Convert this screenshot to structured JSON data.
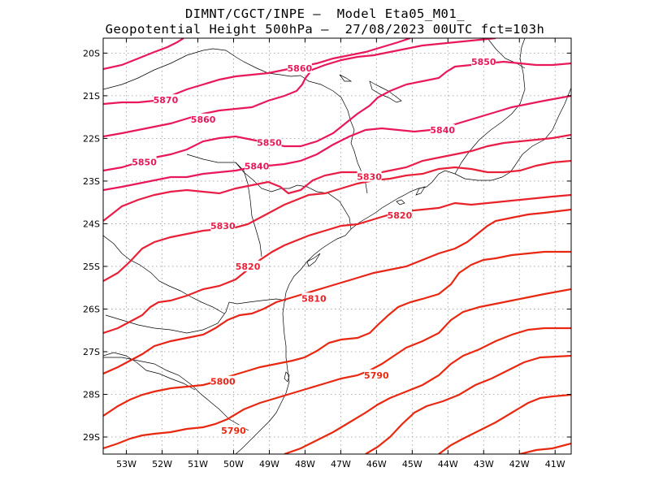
{
  "title": {
    "line1": "DIMNT/CGCT/INPE –  Model Eta05_M01_",
    "line2": "Geopotential Height 500hPa –  27/08/2023 00UTC fct=103h"
  },
  "axes": {
    "lat_labels": [
      "20S",
      "21S",
      "22S",
      "23S",
      "24S",
      "25S",
      "26S",
      "27S",
      "28S",
      "29S"
    ],
    "lat_values": [
      20,
      21,
      22,
      23,
      24,
      25,
      26,
      27,
      28,
      29
    ],
    "lon_labels": [
      "53W",
      "52W",
      "51W",
      "50W",
      "49W",
      "48W",
      "47W",
      "46W",
      "45W",
      "44W",
      "43W",
      "42W",
      "41W"
    ],
    "lon_values": [
      53,
      52,
      51,
      50,
      49,
      48,
      47,
      46,
      45,
      44,
      43,
      42,
      41
    ],
    "lat_range": [
      19.65,
      29.4
    ],
    "lon_range": [
      53.65,
      40.55
    ]
  },
  "contours": [
    {
      "value": 5870,
      "label": "5870",
      "color": "#e8185a"
    },
    {
      "value": 5860,
      "label": "5860",
      "color": "#e8185a"
    },
    {
      "value": 5850,
      "label": "5850",
      "color": "#e8185a"
    },
    {
      "value": 5840,
      "label": "5840",
      "color": "#e8185a"
    },
    {
      "value": 5830,
      "label": "5830",
      "color": "#e81d48"
    },
    {
      "value": 5820,
      "label": "5820",
      "color": "#e82038"
    },
    {
      "value": 5810,
      "label": "5810",
      "color": "#e82228"
    },
    {
      "value": 5800,
      "label": "5800",
      "color": "#e82418"
    },
    {
      "value": 5790,
      "label": "5790",
      "color": "#e82810"
    }
  ],
  "contour_labels": [
    {
      "text": "5860",
      "lon": 48.15,
      "lat": 20.35,
      "color": "#e8185a"
    },
    {
      "text": "5850",
      "lon": 43.0,
      "lat": 20.2,
      "color": "#e8185a"
    },
    {
      "text": "5870",
      "lon": 51.9,
      "lat": 21.1,
      "color": "#e8185a"
    },
    {
      "text": "5860",
      "lon": 50.85,
      "lat": 21.55,
      "color": "#e8185a"
    },
    {
      "text": "5850",
      "lon": 49.0,
      "lat": 22.1,
      "color": "#e8185a"
    },
    {
      "text": "5840",
      "lon": 44.15,
      "lat": 21.8,
      "color": "#e8185a"
    },
    {
      "text": "5850",
      "lon": 52.5,
      "lat": 22.55,
      "color": "#e8185a"
    },
    {
      "text": "5840",
      "lon": 49.35,
      "lat": 22.65,
      "color": "#e8185a"
    },
    {
      "text": "5830",
      "lon": 46.2,
      "lat": 22.9,
      "color": "#e81d48"
    },
    {
      "text": "5820",
      "lon": 45.35,
      "lat": 23.8,
      "color": "#e82038"
    },
    {
      "text": "5830",
      "lon": 50.3,
      "lat": 24.05,
      "color": "#e81d48"
    },
    {
      "text": "5820",
      "lon": 49.6,
      "lat": 25.0,
      "color": "#e82038"
    },
    {
      "text": "5810",
      "lon": 47.75,
      "lat": 25.75,
      "color": "#e82228"
    },
    {
      "text": "5800",
      "lon": 50.3,
      "lat": 27.7,
      "color": "#e82418"
    },
    {
      "text": "5790",
      "lon": 46.0,
      "lat": 27.55,
      "color": "#e82810"
    },
    {
      "text": "5790",
      "lon": 50.0,
      "lat": 28.85,
      "color": "#e82810"
    }
  ]
}
